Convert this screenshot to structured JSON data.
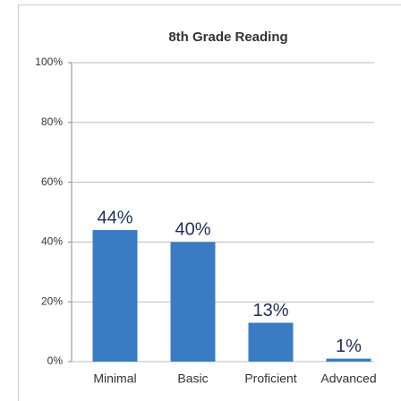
{
  "chart_data": {
    "type": "bar",
    "title": "8th Grade Reading",
    "categories": [
      "Minimal",
      "Basic",
      "Proficient",
      "Advanced"
    ],
    "values": [
      44,
      40,
      13,
      1
    ],
    "value_labels": [
      "44%",
      "40%",
      "13%",
      "1%"
    ],
    "color": "#3a7cc4",
    "ylim": [
      0,
      100
    ],
    "yticks": [
      {
        "value": 0,
        "label": "0%"
      },
      {
        "value": 20,
        "label": "20%"
      },
      {
        "value": 40,
        "label": "40%"
      },
      {
        "value": 60,
        "label": "60%"
      },
      {
        "value": 80,
        "label": "80%"
      },
      {
        "value": 100,
        "label": "100%"
      }
    ],
    "grid": true
  }
}
